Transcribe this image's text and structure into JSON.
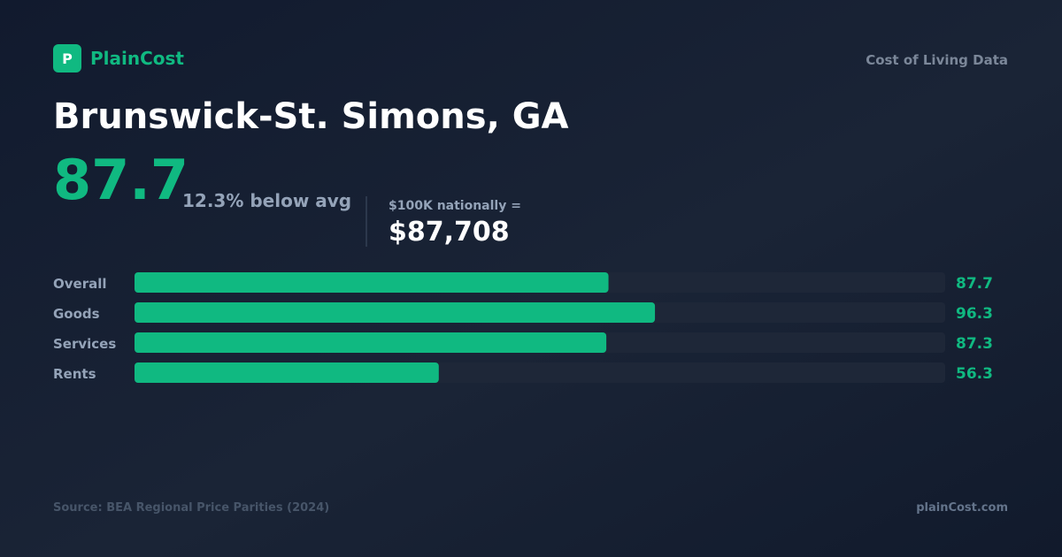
{
  "brand": "PlainCost",
  "logo_letter": "P",
  "tagline": "Cost of Living Data",
  "title": "Brunswick-St. Simons, GA",
  "index": 87.7,
  "comparison": "12.3% below avg",
  "equivalent_label": "$100K nationally =",
  "equivalent_value": "$87,708",
  "chart_data": {
    "type": "bar",
    "orientation": "horizontal",
    "categories": [
      "Overall",
      "Goods",
      "Services",
      "Rents"
    ],
    "values": [
      87.7,
      96.3,
      87.3,
      56.3
    ],
    "color": "#10b981",
    "xlim": [
      0,
      150
    ]
  },
  "source": "Source: BEA Regional Price Parities (2024)",
  "site": "plainCost.com"
}
